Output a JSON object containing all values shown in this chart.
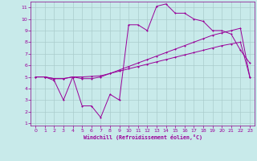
{
  "xlabel": "Windchill (Refroidissement éolien,°C)",
  "bg_color": "#c8eaea",
  "line_color": "#990099",
  "grid_color": "#aacccc",
  "spine_color": "#880088",
  "xlim": [
    -0.5,
    23.5
  ],
  "ylim": [
    0.8,
    11.5
  ],
  "xticks": [
    0,
    1,
    2,
    3,
    4,
    5,
    6,
    7,
    8,
    9,
    10,
    11,
    12,
    13,
    14,
    15,
    16,
    17,
    18,
    19,
    20,
    21,
    22,
    23
  ],
  "yticks": [
    1,
    2,
    3,
    4,
    5,
    6,
    7,
    8,
    9,
    10,
    11
  ],
  "line1_x": [
    0,
    1,
    2,
    3,
    4,
    5,
    6,
    7,
    8,
    9,
    10,
    11,
    12,
    13,
    14,
    15,
    16,
    17,
    18,
    19,
    20,
    21,
    22,
    23
  ],
  "line1_y": [
    5.0,
    5.0,
    4.85,
    4.85,
    5.0,
    5.0,
    5.05,
    5.1,
    5.3,
    5.5,
    5.7,
    5.9,
    6.1,
    6.3,
    6.5,
    6.7,
    6.9,
    7.1,
    7.3,
    7.5,
    7.7,
    7.85,
    8.0,
    5.0
  ],
  "line2_x": [
    0,
    1,
    2,
    3,
    4,
    5,
    6,
    7,
    8,
    9,
    10,
    11,
    12,
    13,
    14,
    15,
    16,
    17,
    18,
    19,
    20,
    21,
    22,
    23
  ],
  "line2_y": [
    5.0,
    5.0,
    4.85,
    4.85,
    5.0,
    4.85,
    4.85,
    5.0,
    5.3,
    5.6,
    5.9,
    6.2,
    6.5,
    6.8,
    7.1,
    7.4,
    7.7,
    8.0,
    8.3,
    8.6,
    8.8,
    9.0,
    9.2,
    5.0
  ],
  "line3_x": [
    1,
    2,
    3,
    4,
    5,
    6,
    7,
    8,
    9,
    10,
    11,
    12,
    13,
    14,
    15,
    16,
    17,
    18,
    19,
    20,
    21,
    22,
    23
  ],
  "line3_y": [
    5.0,
    4.7,
    3.0,
    5.0,
    2.5,
    2.5,
    1.5,
    3.5,
    3.0,
    9.5,
    9.5,
    9.0,
    11.1,
    11.3,
    10.5,
    10.5,
    10.0,
    9.8,
    9.0,
    9.0,
    8.7,
    7.3,
    6.2
  ]
}
